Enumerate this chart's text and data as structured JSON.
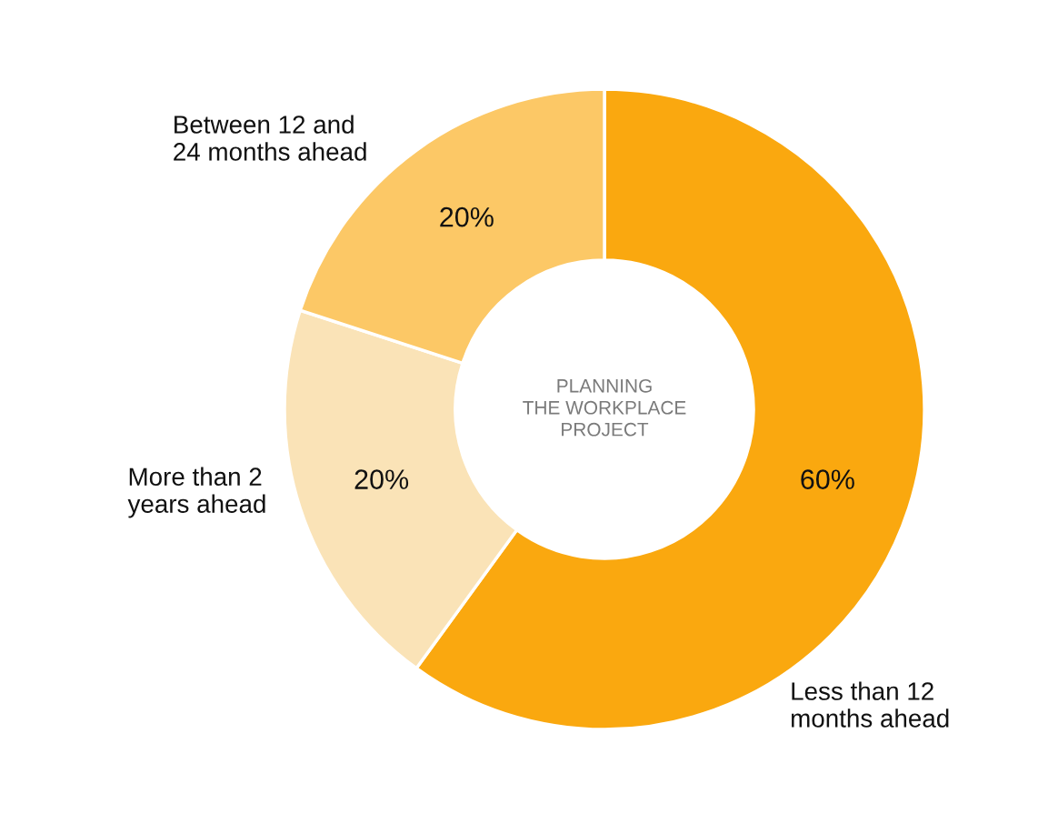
{
  "chart_data": {
    "type": "donut",
    "title": "PLANNING\nTHE WORKPLACE\nPROJECT",
    "categories": [
      "Less than 12\nmonths ahead",
      "More than 2\nyears ahead",
      "Between 12 and\n24 months ahead"
    ],
    "values": [
      60,
      20,
      20
    ],
    "colors": [
      "#faa80f",
      "#fae3b7",
      "#fcc866"
    ],
    "value_labels": [
      "60%",
      "20%",
      "20%"
    ],
    "legend": false
  }
}
